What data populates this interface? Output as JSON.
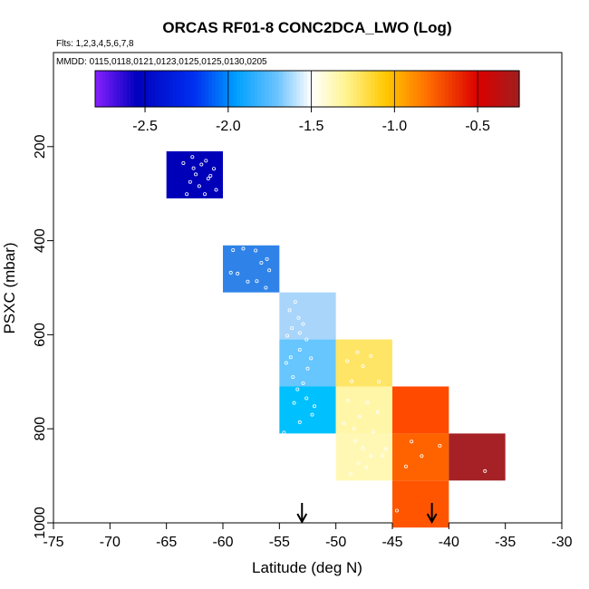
{
  "chart_data": {
    "type": "heatmap",
    "title": "ORCAS RF01-8 CONC2DCA_LWO (Log)",
    "flights_label": "Flts: 1,2,3,4,5,6,7,8",
    "mmdd_label": "MMDD: 0115,0118,0121,0123,0125,0125,0130,0205",
    "xlabel": "Latitude (deg N)",
    "ylabel": "PSXC (mbar)",
    "xlim": [
      -75,
      -30
    ],
    "ylim": [
      1000,
      0
    ],
    "x_ticks": [
      -75,
      -70,
      -65,
      -60,
      -55,
      -50,
      -45,
      -40,
      -35,
      -30
    ],
    "x_tick_labels": [
      "-75",
      "-70",
      "-65",
      "-60",
      "-55",
      "-50",
      "-45",
      "-40",
      "-35",
      "-30"
    ],
    "y_ticks": [
      200,
      400,
      600,
      800,
      1000
    ],
    "y_tick_labels": [
      "200",
      "400",
      "600",
      "800",
      "1000"
    ],
    "colorbar": {
      "range": [
        -2.8,
        -1.0,
        -1.0,
        -0.25
      ],
      "min": -2.8,
      "max": -0.25,
      "ticks": [
        -2.5,
        -2.0,
        -1.5,
        -1.0,
        -0.5
      ],
      "tick_labels": [
        "-2.5",
        "-2.0",
        "-1.5",
        "-1.0",
        "-0.5"
      ]
    },
    "bin_width_lat": 5,
    "bin_height_mbar": 100,
    "cells": [
      {
        "lat": -65,
        "p": 210,
        "value": -2.65,
        "color": "#0000b8"
      },
      {
        "lat": -60,
        "p": 410,
        "value": -2.05,
        "color": "#2f83e8"
      },
      {
        "lat": -55,
        "p": 510,
        "value": -1.55,
        "color": "#a9d5fb"
      },
      {
        "lat": -55,
        "p": 610,
        "value": -1.75,
        "color": "#66c6fd"
      },
      {
        "lat": -55,
        "p": 710,
        "value": -1.85,
        "color": "#00c0fd"
      },
      {
        "lat": -50,
        "p": 610,
        "value": -1.05,
        "color": "#ffe566"
      },
      {
        "lat": -50,
        "p": 710,
        "value": -1.25,
        "color": "#fff6a8"
      },
      {
        "lat": -50,
        "p": 810,
        "value": -1.3,
        "color": "#fff8b4"
      },
      {
        "lat": -45,
        "p": 710,
        "value": -0.62,
        "color": "#ff4a00"
      },
      {
        "lat": -45,
        "p": 810,
        "value": -0.65,
        "color": "#ff6300"
      },
      {
        "lat": -45,
        "p": 910,
        "value": -0.68,
        "color": "#ff5500"
      },
      {
        "lat": -40,
        "p": 810,
        "value": -0.3,
        "color": "#a52125"
      }
    ],
    "arrows_lat": [
      -53,
      -41.5
    ],
    "points": [
      {
        "lat": -62.7,
        "p": 222
      },
      {
        "lat": -61.9,
        "p": 238
      },
      {
        "lat": -62.4,
        "p": 259
      },
      {
        "lat": -61.3,
        "p": 268
      },
      {
        "lat": -62.1,
        "p": 284
      },
      {
        "lat": -61.6,
        "p": 301
      },
      {
        "lat": -63.2,
        "p": 301
      },
      {
        "lat": -60.8,
        "p": 247
      },
      {
        "lat": -62.9,
        "p": 275
      },
      {
        "lat": -61.5,
        "p": 230
      },
      {
        "lat": -60.6,
        "p": 292
      },
      {
        "lat": -62.6,
        "p": 246
      },
      {
        "lat": -63.5,
        "p": 235
      },
      {
        "lat": -61.1,
        "p": 262
      },
      {
        "lat": -59.1,
        "p": 420
      },
      {
        "lat": -58.2,
        "p": 417
      },
      {
        "lat": -57.1,
        "p": 421
      },
      {
        "lat": -56.1,
        "p": 439
      },
      {
        "lat": -55.9,
        "p": 463
      },
      {
        "lat": -59.3,
        "p": 468
      },
      {
        "lat": -57.8,
        "p": 487
      },
      {
        "lat": -57.0,
        "p": 486
      },
      {
        "lat": -56.2,
        "p": 500
      },
      {
        "lat": -56.6,
        "p": 447
      },
      {
        "lat": -58.7,
        "p": 470
      },
      {
        "lat": -54.1,
        "p": 548
      },
      {
        "lat": -53.3,
        "p": 564
      },
      {
        "lat": -53.9,
        "p": 586
      },
      {
        "lat": -52.9,
        "p": 577
      },
      {
        "lat": -54.3,
        "p": 602
      },
      {
        "lat": -53.6,
        "p": 530
      },
      {
        "lat": -52.6,
        "p": 610
      },
      {
        "lat": -53.2,
        "p": 596
      },
      {
        "lat": -54.0,
        "p": 648
      },
      {
        "lat": -53.2,
        "p": 632
      },
      {
        "lat": -52.5,
        "p": 672
      },
      {
        "lat": -53.8,
        "p": 690
      },
      {
        "lat": -52.9,
        "p": 703
      },
      {
        "lat": -54.4,
        "p": 660
      },
      {
        "lat": -53.4,
        "p": 716
      },
      {
        "lat": -52.2,
        "p": 650
      },
      {
        "lat": -53.7,
        "p": 745
      },
      {
        "lat": -52.6,
        "p": 735
      },
      {
        "lat": -52.1,
        "p": 770
      },
      {
        "lat": -53.2,
        "p": 786
      },
      {
        "lat": -54.6,
        "p": 808
      },
      {
        "lat": -51.9,
        "p": 752
      },
      {
        "lat": -48.1,
        "p": 637
      },
      {
        "lat": -46.9,
        "p": 645
      },
      {
        "lat": -49.0,
        "p": 656
      },
      {
        "lat": -47.6,
        "p": 667
      },
      {
        "lat": -46.2,
        "p": 700
      },
      {
        "lat": -48.6,
        "p": 699
      },
      {
        "lat": -48.9,
        "p": 740
      },
      {
        "lat": -47.2,
        "p": 744
      },
      {
        "lat": -46.3,
        "p": 765
      },
      {
        "lat": -47.9,
        "p": 774
      },
      {
        "lat": -48.4,
        "p": 800
      },
      {
        "lat": -46.7,
        "p": 806
      },
      {
        "lat": -49.3,
        "p": 788
      },
      {
        "lat": -48.3,
        "p": 826
      },
      {
        "lat": -47.6,
        "p": 842
      },
      {
        "lat": -46.9,
        "p": 858
      },
      {
        "lat": -45.9,
        "p": 857
      },
      {
        "lat": -48.0,
        "p": 872
      },
      {
        "lat": -47.3,
        "p": 882
      },
      {
        "lat": -45.6,
        "p": 843
      },
      {
        "lat": -48.7,
        "p": 896
      },
      {
        "lat": -43.3,
        "p": 827
      },
      {
        "lat": -42.4,
        "p": 858
      },
      {
        "lat": -43.8,
        "p": 880
      },
      {
        "lat": -44.6,
        "p": 974
      },
      {
        "lat": -40.8,
        "p": 836
      },
      {
        "lat": -36.8,
        "p": 890
      }
    ]
  }
}
